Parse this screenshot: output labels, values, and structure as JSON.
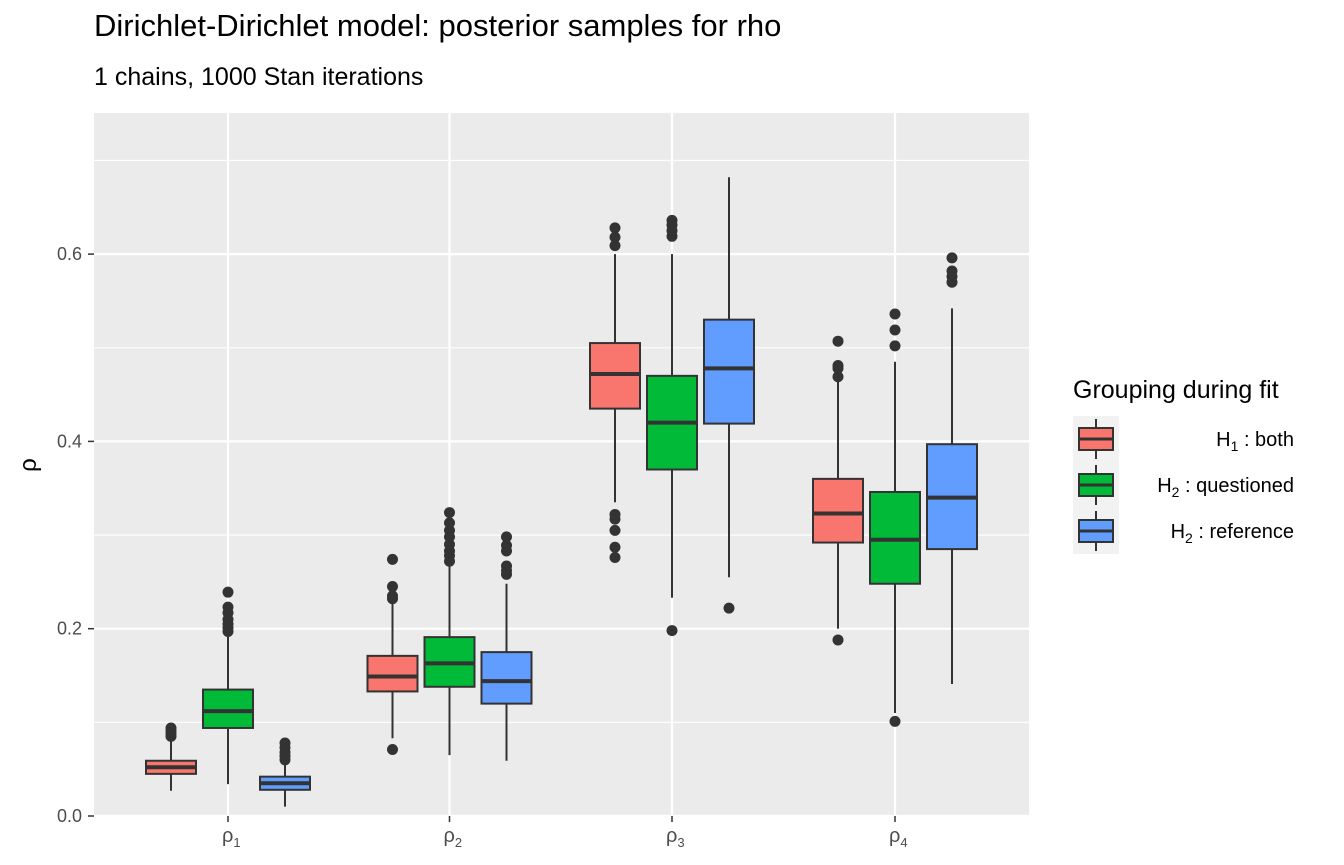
{
  "title": "Dirichlet-Dirichlet model: posterior samples for rho",
  "subtitle": "1 chains, 1000 Stan iterations",
  "chart_data": {
    "type": "box",
    "title": "Dirichlet-Dirichlet model: posterior samples for rho",
    "subtitle": "1 chains, 1000 Stan iterations",
    "xlabel": "",
    "ylabel": "ρ",
    "ylim": [
      0.0,
      0.72
    ],
    "yticks": [
      {
        "value": 0.0,
        "label": "0.0"
      },
      {
        "value": 0.2,
        "label": "0.2"
      },
      {
        "value": 0.4,
        "label": "0.4"
      },
      {
        "value": 0.6,
        "label": "0.6"
      }
    ],
    "categories": [
      {
        "base": "ρ",
        "sub": "1"
      },
      {
        "base": "ρ",
        "sub": "2"
      },
      {
        "base": "ρ",
        "sub": "3"
      },
      {
        "base": "ρ",
        "sub": "4"
      }
    ],
    "grid": true,
    "legend": {
      "title": "Grouping during fit",
      "position": "right",
      "entries": [
        {
          "main": "H",
          "sub": "1",
          "rest": " :  both",
          "color": "#F8766D"
        },
        {
          "main": "H",
          "sub": "2",
          "rest": " :  questioned",
          "color": "#00BA38"
        },
        {
          "main": "H",
          "sub": "2",
          "rest": " :  reference",
          "color": "#619CFF"
        }
      ]
    },
    "series": [
      {
        "color": "#F8766D",
        "boxes": [
          {
            "q1": 0.045,
            "median": 0.052,
            "q3": 0.059,
            "whisker_low": 0.027,
            "whisker_high": 0.08,
            "outliers": [
              0.085,
              0.088,
              0.091,
              0.094
            ]
          },
          {
            "q1": 0.133,
            "median": 0.149,
            "q3": 0.171,
            "whisker_low": 0.083,
            "whisker_high": 0.227,
            "outliers": [
              0.071,
              0.232,
              0.235,
              0.245,
              0.274
            ]
          },
          {
            "q1": 0.435,
            "median": 0.472,
            "q3": 0.505,
            "whisker_low": 0.335,
            "whisker_high": 0.6,
            "outliers": [
              0.276,
              0.287,
              0.305,
              0.317,
              0.322,
              0.609,
              0.618,
              0.628
            ]
          },
          {
            "q1": 0.292,
            "median": 0.323,
            "q3": 0.36,
            "whisker_low": 0.2,
            "whisker_high": 0.465,
            "outliers": [
              0.188,
              0.469,
              0.478,
              0.481,
              0.507
            ]
          }
        ]
      },
      {
        "color": "#00BA38",
        "boxes": [
          {
            "q1": 0.094,
            "median": 0.112,
            "q3": 0.135,
            "whisker_low": 0.034,
            "whisker_high": 0.192,
            "outliers": [
              0.197,
              0.201,
              0.205,
              0.21,
              0.217,
              0.223,
              0.239
            ]
          },
          {
            "q1": 0.138,
            "median": 0.163,
            "q3": 0.191,
            "whisker_low": 0.065,
            "whisker_high": 0.268,
            "outliers": [
              0.272,
              0.278,
              0.283,
              0.29,
              0.298,
              0.305,
              0.313,
              0.324
            ]
          },
          {
            "q1": 0.37,
            "median": 0.42,
            "q3": 0.47,
            "whisker_low": 0.233,
            "whisker_high": 0.6,
            "outliers": [
              0.198,
              0.619,
              0.625,
              0.631,
              0.636
            ]
          },
          {
            "q1": 0.248,
            "median": 0.295,
            "q3": 0.346,
            "whisker_low": 0.11,
            "whisker_high": 0.485,
            "outliers": [
              0.101,
              0.502,
              0.519,
              0.536
            ]
          }
        ]
      },
      {
        "color": "#619CFF",
        "boxes": [
          {
            "q1": 0.028,
            "median": 0.035,
            "q3": 0.042,
            "whisker_low": 0.01,
            "whisker_high": 0.057,
            "outliers": [
              0.06,
              0.064,
              0.068,
              0.073,
              0.078
            ]
          },
          {
            "q1": 0.12,
            "median": 0.144,
            "q3": 0.175,
            "whisker_low": 0.059,
            "whisker_high": 0.248,
            "outliers": [
              0.258,
              0.262,
              0.267,
              0.283,
              0.289,
              0.298
            ]
          },
          {
            "q1": 0.419,
            "median": 0.478,
            "q3": 0.53,
            "whisker_low": 0.255,
            "whisker_high": 0.682,
            "outliers": [
              0.222
            ]
          },
          {
            "q1": 0.285,
            "median": 0.34,
            "q3": 0.397,
            "whisker_low": 0.141,
            "whisker_high": 0.542,
            "outliers": [
              0.57,
              0.576,
              0.582,
              0.596
            ]
          }
        ]
      }
    ]
  }
}
